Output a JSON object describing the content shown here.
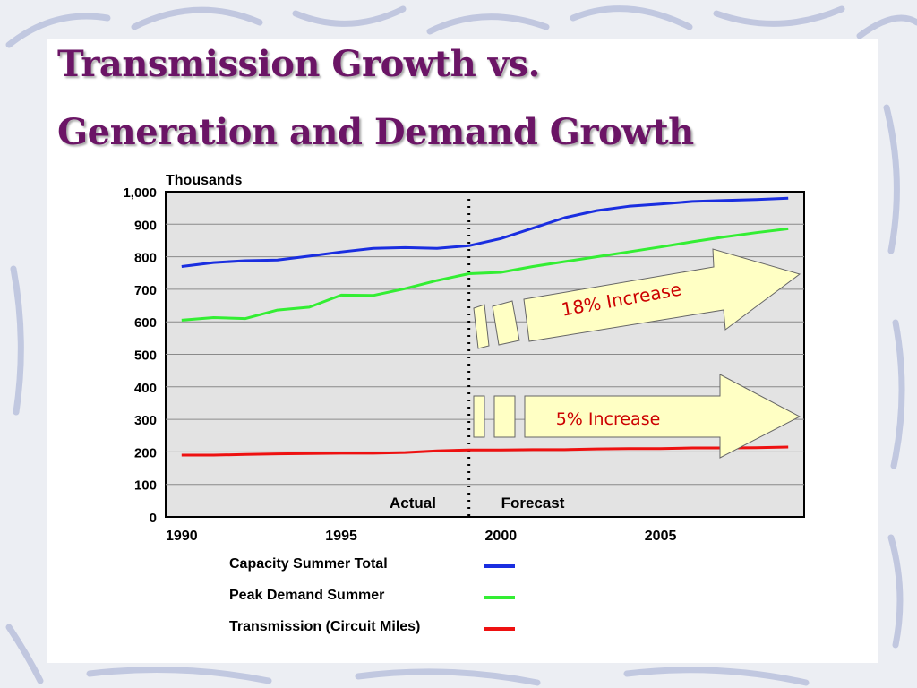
{
  "slide": {
    "title_line1": "Transmission Growth vs.",
    "title_line2": "Generation and Demand Growth"
  },
  "colors": {
    "title": "#6b1566",
    "plot_bg": "#e3e3e3",
    "callout_fill": "#ffffc4",
    "callout_text": "#cc0000"
  },
  "chart_data": {
    "type": "line",
    "unit_label": "Thousands",
    "ylim": [
      0,
      1000
    ],
    "xlim": [
      1989.5,
      2009.5
    ],
    "y_ticks": [
      {
        "value": 1000,
        "label": "1,000"
      },
      {
        "value": 900,
        "label": "900"
      },
      {
        "value": 800,
        "label": "800"
      },
      {
        "value": 700,
        "label": "700"
      },
      {
        "value": 600,
        "label": "600"
      },
      {
        "value": 500,
        "label": "500"
      },
      {
        "value": 400,
        "label": "400"
      },
      {
        "value": 300,
        "label": "300"
      },
      {
        "value": 200,
        "label": "200"
      },
      {
        "value": 100,
        "label": "100"
      },
      {
        "value": 0,
        "label": "0"
      }
    ],
    "x_ticks": [
      {
        "value": 1990,
        "label": "1990"
      },
      {
        "value": 1995,
        "label": "1995"
      },
      {
        "value": 2000,
        "label": "2000"
      },
      {
        "value": 2005,
        "label": "2005"
      }
    ],
    "grid": true,
    "divider_x": 1999,
    "region_labels": [
      "Actual",
      "Forecast"
    ],
    "x": [
      1990,
      1991,
      1992,
      1993,
      1994,
      1995,
      1996,
      1997,
      1998,
      1999,
      2000,
      2001,
      2002,
      2003,
      2004,
      2005,
      2006,
      2007,
      2008,
      2009
    ],
    "series": [
      {
        "name": "Capacity Summer Total",
        "color": "#1a2ee0",
        "values": [
          770,
          782,
          788,
          790,
          802,
          815,
          826,
          828,
          826,
          834,
          856,
          888,
          920,
          942,
          955,
          962,
          970,
          973,
          976,
          980
        ]
      },
      {
        "name": "Peak Demand Summer",
        "color": "#33ee33",
        "values": [
          605,
          613,
          610,
          636,
          645,
          682,
          681,
          702,
          727,
          748,
          752,
          770,
          785,
          800,
          815,
          830,
          846,
          861,
          874,
          886
        ]
      },
      {
        "name": "Transmission (Circuit Miles)",
        "color": "#ee1111",
        "values": [
          190,
          190,
          192,
          194,
          195,
          196,
          196,
          198,
          203,
          206,
          206,
          207,
          207,
          209,
          210,
          210,
          212,
          212,
          213,
          215
        ]
      }
    ],
    "annotations": [
      "18% Increase",
      "5% Increase"
    ],
    "legend_position": "bottom"
  }
}
